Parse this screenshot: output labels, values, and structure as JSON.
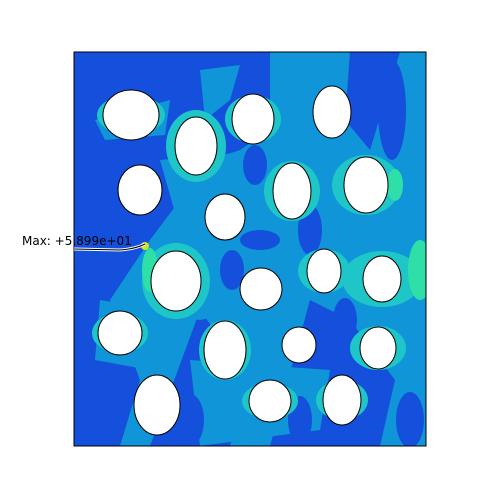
{
  "annotation": {
    "label": "Max: +5.899e+01"
  }
}
